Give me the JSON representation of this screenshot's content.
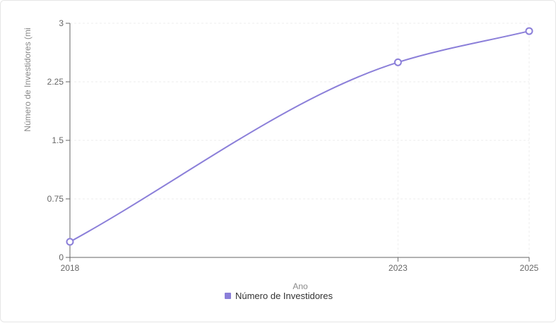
{
  "chart_data": {
    "type": "line",
    "x": [
      "2018",
      "2023",
      "2025"
    ],
    "series": [
      {
        "name": "Número de Investidores",
        "values": [
          0.2,
          2.5,
          2.9
        ]
      }
    ],
    "xlabel": "Ano",
    "ylabel": "Número de Investidores (mi",
    "ylim": [
      0,
      3
    ],
    "yticks": [
      "0",
      "0.75",
      "1.5",
      "2.25",
      "3"
    ],
    "grid": true,
    "legend": "bottom-center",
    "line_color": "#8b7fd9",
    "marker_fill": "#ffffff"
  }
}
